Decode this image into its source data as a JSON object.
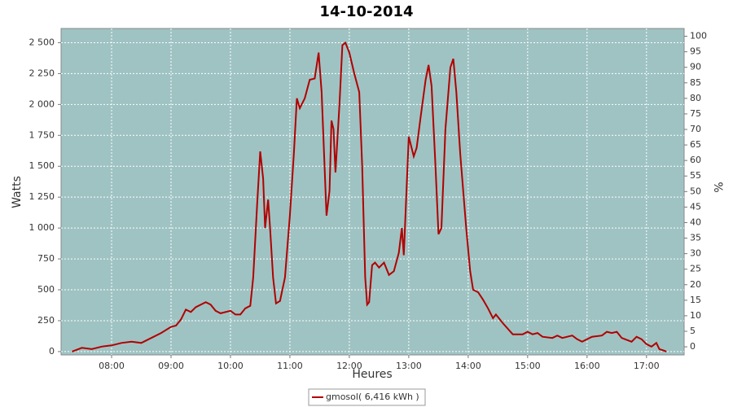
{
  "chart_data": {
    "type": "line",
    "title": "14-10-2014",
    "x_label": "Heures",
    "y_label": "Watts",
    "y2_label": "%",
    "x": [
      "07:20",
      "07:30",
      "07:40",
      "07:50",
      "08:00",
      "08:10",
      "08:20",
      "08:30",
      "08:40",
      "08:50",
      "09:00",
      "09:05",
      "09:10",
      "09:15",
      "09:20",
      "09:25",
      "09:35",
      "09:40",
      "09:45",
      "09:50",
      "10:00",
      "10:05",
      "10:10",
      "10:15",
      "10:20",
      "10:23",
      "10:27",
      "10:30",
      "10:33",
      "10:35",
      "10:38",
      "10:40",
      "10:43",
      "10:46",
      "10:50",
      "10:55",
      "11:00",
      "11:04",
      "11:07",
      "11:10",
      "11:15",
      "11:20",
      "11:25",
      "11:29",
      "11:32",
      "11:37",
      "11:40",
      "11:42",
      "11:44",
      "11:46",
      "11:50",
      "11:53",
      "11:56",
      "12:00",
      "12:05",
      "12:10",
      "12:13",
      "12:16",
      "12:18",
      "12:20",
      "12:23",
      "12:26",
      "12:30",
      "12:35",
      "12:40",
      "12:45",
      "12:50",
      "12:53",
      "12:55",
      "13:00",
      "13:05",
      "13:08",
      "13:12",
      "13:17",
      "13:20",
      "13:23",
      "13:27",
      "13:30",
      "13:33",
      "13:37",
      "13:42",
      "13:45",
      "13:48",
      "13:52",
      "13:58",
      "14:02",
      "14:05",
      "14:10",
      "14:15",
      "14:20",
      "14:25",
      "14:28",
      "14:35",
      "14:45",
      "14:55",
      "15:00",
      "15:05",
      "15:10",
      "15:15",
      "15:25",
      "15:30",
      "15:35",
      "15:45",
      "15:50",
      "15:55",
      "16:00",
      "16:05",
      "16:15",
      "16:20",
      "16:25",
      "16:30",
      "16:35",
      "16:45",
      "16:50",
      "16:55",
      "17:00",
      "17:05",
      "17:10",
      "17:13",
      "17:17",
      "17:20"
    ],
    "series": [
      {
        "name": "gmosol( 6,416 kWh )",
        "color": "#b20000",
        "values": [
          0,
          30,
          20,
          40,
          50,
          70,
          80,
          70,
          110,
          150,
          200,
          210,
          260,
          340,
          320,
          360,
          400,
          380,
          330,
          310,
          330,
          300,
          300,
          350,
          370,
          600,
          1200,
          1620,
          1400,
          1000,
          1230,
          1000,
          600,
          390,
          410,
          600,
          1100,
          1600,
          2050,
          1970,
          2050,
          2200,
          2210,
          2420,
          2100,
          1100,
          1300,
          1870,
          1800,
          1450,
          2000,
          2480,
          2500,
          2420,
          2250,
          2100,
          1500,
          600,
          380,
          400,
          700,
          720,
          680,
          720,
          620,
          650,
          800,
          1000,
          780,
          1740,
          1580,
          1650,
          1900,
          2200,
          2320,
          2150,
          1500,
          950,
          1000,
          1800,
          2300,
          2370,
          2100,
          1600,
          1000,
          650,
          500,
          480,
          420,
          350,
          270,
          300,
          230,
          140,
          140,
          160,
          140,
          150,
          120,
          110,
          130,
          110,
          130,
          100,
          80,
          100,
          120,
          130,
          160,
          150,
          160,
          110,
          80,
          120,
          100,
          60,
          40,
          70,
          20,
          10,
          0
        ]
      }
    ],
    "xlim": [
      "07:09",
      "17:38"
    ],
    "xticks": [
      "08:00",
      "09:00",
      "10:00",
      "11:00",
      "12:00",
      "13:00",
      "14:00",
      "15:00",
      "16:00",
      "17:00"
    ],
    "ylim": [
      -27,
      2615
    ],
    "yticks": [
      0,
      250,
      500,
      750,
      {
        "value": 1000,
        "label": "1 000"
      },
      {
        "value": 1250,
        "label": "1 250"
      },
      {
        "value": 1500,
        "label": "1 500"
      },
      {
        "value": 1750,
        "label": "1 750"
      },
      {
        "value": 2000,
        "label": "2 000"
      },
      {
        "value": 2250,
        "label": "2 250"
      },
      {
        "value": 2500,
        "label": "2 500"
      }
    ],
    "y2lim": [
      -2.6,
      102.5
    ],
    "y2ticks": [
      0,
      5,
      10,
      15,
      20,
      25,
      30,
      35,
      40,
      45,
      50,
      55,
      60,
      65,
      70,
      75,
      80,
      85,
      90,
      95,
      100
    ],
    "grid": true,
    "background": "#9fc3c3",
    "legend": "bottom"
  }
}
